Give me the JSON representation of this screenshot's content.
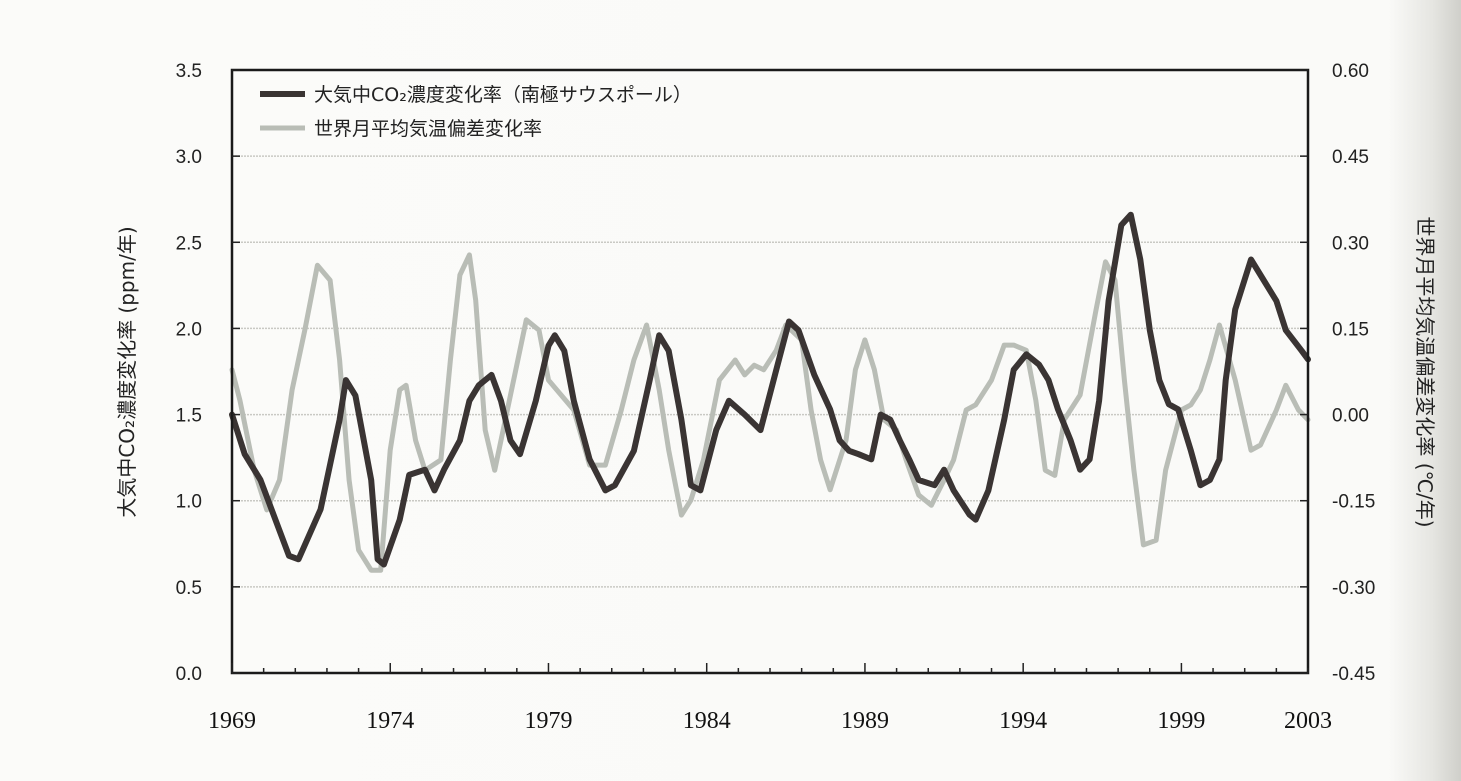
{
  "chart_data": {
    "type": "line",
    "title": "",
    "xlabel": "",
    "ylabel": "大気中CO₂濃度変化率 (ppm/年)",
    "y2label": "世界月平均気温偏差変化率 (℃/年)",
    "xlim": [
      1969,
      2003
    ],
    "ylim": [
      0.0,
      3.5
    ],
    "y2lim": [
      -0.45,
      0.6
    ],
    "x_ticks": [
      "1969",
      "1974",
      "1979",
      "1984",
      "1989",
      "1994",
      "1999",
      "2003"
    ],
    "x_tick_values": [
      1969,
      1974,
      1979,
      1984,
      1989,
      1994,
      1999,
      2003
    ],
    "y_ticks": [
      "0.0",
      "0.5",
      "1.0",
      "1.5",
      "2.0",
      "2.5",
      "3.0",
      "3.5"
    ],
    "y2_ticks": [
      "-0.45",
      "-0.30",
      "-0.15",
      "0.00",
      "0.15",
      "0.30",
      "0.45",
      "0.60"
    ],
    "grid": "horizontal dotted",
    "legend_position": "top-left",
    "series": [
      {
        "name": "大気中CO₂濃度変化率（南極サウスポール）",
        "axis": "left",
        "color": "#3a3433",
        "points": [
          [
            1969.0,
            1.5
          ],
          [
            1969.4,
            1.27
          ],
          [
            1969.9,
            1.12
          ],
          [
            1970.8,
            0.68
          ],
          [
            1971.1,
            0.66
          ],
          [
            1971.8,
            0.95
          ],
          [
            1972.4,
            1.47
          ],
          [
            1972.6,
            1.7
          ],
          [
            1972.9,
            1.61
          ],
          [
            1973.4,
            1.12
          ],
          [
            1973.6,
            0.66
          ],
          [
            1973.8,
            0.63
          ],
          [
            1974.3,
            0.89
          ],
          [
            1974.6,
            1.15
          ],
          [
            1975.1,
            1.18
          ],
          [
            1975.4,
            1.06
          ],
          [
            1975.7,
            1.18
          ],
          [
            1976.2,
            1.35
          ],
          [
            1976.5,
            1.58
          ],
          [
            1976.8,
            1.67
          ],
          [
            1977.2,
            1.73
          ],
          [
            1977.5,
            1.58
          ],
          [
            1977.8,
            1.35
          ],
          [
            1978.1,
            1.27
          ],
          [
            1978.6,
            1.58
          ],
          [
            1979.0,
            1.9
          ],
          [
            1979.2,
            1.96
          ],
          [
            1979.5,
            1.87
          ],
          [
            1979.8,
            1.58
          ],
          [
            1980.3,
            1.24
          ],
          [
            1980.8,
            1.06
          ],
          [
            1981.1,
            1.09
          ],
          [
            1981.7,
            1.29
          ],
          [
            1982.2,
            1.7
          ],
          [
            1982.5,
            1.96
          ],
          [
            1982.8,
            1.87
          ],
          [
            1983.2,
            1.47
          ],
          [
            1983.5,
            1.09
          ],
          [
            1983.8,
            1.06
          ],
          [
            1984.3,
            1.41
          ],
          [
            1984.7,
            1.58
          ],
          [
            1985.2,
            1.5
          ],
          [
            1985.7,
            1.41
          ],
          [
            1986.2,
            1.76
          ],
          [
            1986.6,
            2.04
          ],
          [
            1986.9,
            1.99
          ],
          [
            1987.4,
            1.73
          ],
          [
            1987.9,
            1.53
          ],
          [
            1988.2,
            1.35
          ],
          [
            1988.5,
            1.29
          ],
          [
            1988.8,
            1.27
          ],
          [
            1989.2,
            1.24
          ],
          [
            1989.5,
            1.5
          ],
          [
            1989.8,
            1.47
          ],
          [
            1990.1,
            1.35
          ],
          [
            1990.4,
            1.24
          ],
          [
            1990.7,
            1.12
          ],
          [
            1991.2,
            1.09
          ],
          [
            1991.5,
            1.18
          ],
          [
            1991.8,
            1.06
          ],
          [
            1992.3,
            0.92
          ],
          [
            1992.5,
            0.89
          ],
          [
            1992.9,
            1.06
          ],
          [
            1993.4,
            1.47
          ],
          [
            1993.7,
            1.76
          ],
          [
            1994.1,
            1.85
          ],
          [
            1994.5,
            1.79
          ],
          [
            1994.8,
            1.7
          ],
          [
            1995.1,
            1.53
          ],
          [
            1995.5,
            1.35
          ],
          [
            1995.8,
            1.18
          ],
          [
            1996.1,
            1.24
          ],
          [
            1996.4,
            1.58
          ],
          [
            1996.7,
            2.16
          ],
          [
            1997.1,
            2.6
          ],
          [
            1997.4,
            2.66
          ],
          [
            1997.7,
            2.4
          ],
          [
            1998.0,
            1.99
          ],
          [
            1998.3,
            1.7
          ],
          [
            1998.6,
            1.56
          ],
          [
            1998.9,
            1.53
          ],
          [
            1999.3,
            1.29
          ],
          [
            1999.6,
            1.09
          ],
          [
            1999.9,
            1.12
          ],
          [
            2000.2,
            1.24
          ],
          [
            2000.4,
            1.7
          ],
          [
            2000.7,
            2.11
          ],
          [
            2001.2,
            2.4
          ],
          [
            2001.5,
            2.31
          ],
          [
            2002.0,
            2.16
          ],
          [
            2002.3,
            1.99
          ],
          [
            2002.8,
            1.87
          ],
          [
            2003.0,
            1.82
          ]
        ]
      },
      {
        "name": "世界月平均気温偏差変化率",
        "axis": "right",
        "color": "#b9bdb6",
        "points": [
          [
            1969.0,
            0.078
          ],
          [
            1969.25,
            0.025
          ],
          [
            1969.7,
            -0.097
          ],
          [
            1970.1,
            -0.166
          ],
          [
            1970.5,
            -0.114
          ],
          [
            1970.9,
            0.043
          ],
          [
            1971.3,
            0.147
          ],
          [
            1971.7,
            0.26
          ],
          [
            1972.1,
            0.234
          ],
          [
            1972.4,
            0.095
          ],
          [
            1972.7,
            -0.114
          ],
          [
            1973.0,
            -0.236
          ],
          [
            1973.4,
            -0.271
          ],
          [
            1973.7,
            -0.271
          ],
          [
            1974.0,
            -0.062
          ],
          [
            1974.3,
            0.043
          ],
          [
            1974.5,
            0.051
          ],
          [
            1974.8,
            -0.045
          ],
          [
            1975.1,
            -0.097
          ],
          [
            1975.6,
            -0.079
          ],
          [
            1975.9,
            0.095
          ],
          [
            1976.2,
            0.243
          ],
          [
            1976.5,
            0.278
          ],
          [
            1976.7,
            0.199
          ],
          [
            1977.0,
            -0.027
          ],
          [
            1977.3,
            -0.097
          ],
          [
            1977.8,
            0.034
          ],
          [
            1978.3,
            0.165
          ],
          [
            1978.7,
            0.147
          ],
          [
            1979.0,
            0.06
          ],
          [
            1979.4,
            0.034
          ],
          [
            1979.8,
            0.008
          ],
          [
            1980.3,
            -0.088
          ],
          [
            1980.8,
            -0.088
          ],
          [
            1981.3,
            0.008
          ],
          [
            1981.7,
            0.095
          ],
          [
            1982.1,
            0.156
          ],
          [
            1982.5,
            0.043
          ],
          [
            1982.8,
            -0.062
          ],
          [
            1983.2,
            -0.175
          ],
          [
            1983.5,
            -0.149
          ],
          [
            1983.9,
            -0.079
          ],
          [
            1984.4,
            0.06
          ],
          [
            1984.9,
            0.095
          ],
          [
            1985.2,
            0.069
          ],
          [
            1985.5,
            0.086
          ],
          [
            1985.8,
            0.078
          ],
          [
            1986.2,
            0.112
          ],
          [
            1986.5,
            0.156
          ],
          [
            1987.0,
            0.13
          ],
          [
            1987.3,
            0.008
          ],
          [
            1987.6,
            -0.079
          ],
          [
            1987.9,
            -0.131
          ],
          [
            1988.4,
            -0.045
          ],
          [
            1988.7,
            0.078
          ],
          [
            1989.0,
            0.13
          ],
          [
            1989.3,
            0.078
          ],
          [
            1989.6,
            -0.009
          ],
          [
            1990.0,
            -0.027
          ],
          [
            1990.3,
            -0.079
          ],
          [
            1990.7,
            -0.14
          ],
          [
            1991.1,
            -0.158
          ],
          [
            1991.5,
            -0.114
          ],
          [
            1991.8,
            -0.079
          ],
          [
            1992.2,
            0.008
          ],
          [
            1992.5,
            0.017
          ],
          [
            1993.0,
            0.06
          ],
          [
            1993.4,
            0.121
          ],
          [
            1993.7,
            0.121
          ],
          [
            1994.1,
            0.112
          ],
          [
            1994.4,
            0.025
          ],
          [
            1994.7,
            -0.097
          ],
          [
            1995.0,
            -0.106
          ],
          [
            1995.3,
            -0.009
          ],
          [
            1995.8,
            0.034
          ],
          [
            1996.3,
            0.182
          ],
          [
            1996.6,
            0.266
          ],
          [
            1996.9,
            0.234
          ],
          [
            1997.2,
            0.06
          ],
          [
            1997.5,
            -0.097
          ],
          [
            1997.8,
            -0.227
          ],
          [
            1998.2,
            -0.219
          ],
          [
            1998.5,
            -0.097
          ],
          [
            1999.0,
            0.008
          ],
          [
            1999.3,
            0.017
          ],
          [
            1999.6,
            0.043
          ],
          [
            1999.9,
            0.095
          ],
          [
            2000.2,
            0.156
          ],
          [
            2000.7,
            0.06
          ],
          [
            2001.2,
            -0.062
          ],
          [
            2001.5,
            -0.053
          ],
          [
            2002.0,
            0.008
          ],
          [
            2002.3,
            0.051
          ],
          [
            2002.7,
            0.008
          ],
          [
            2003.0,
            -0.009
          ]
        ]
      }
    ]
  }
}
